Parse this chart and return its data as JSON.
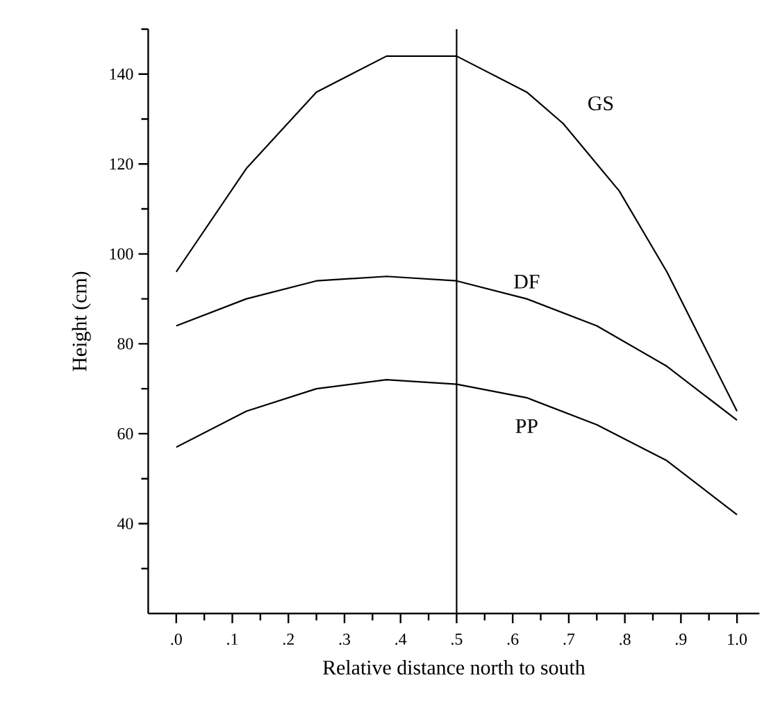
{
  "chart_data": {
    "type": "line",
    "xlabel": "Relative distance north to south",
    "ylabel": "Height (cm)",
    "series": [
      {
        "name": "GS",
        "color": "#000000",
        "x": [
          0,
          0.125,
          0.25,
          0.375,
          0.5,
          0.625,
          0.69,
          0.79,
          0.875,
          1
        ],
        "values": [
          96,
          119,
          136,
          144,
          144,
          136,
          129,
          114,
          96,
          65
        ]
      },
      {
        "name": "DF",
        "color": "#000000",
        "x": [
          0,
          0.125,
          0.25,
          0.375,
          0.5,
          0.625,
          0.75,
          0.875,
          1
        ],
        "values": [
          84,
          90,
          94,
          95,
          94,
          90,
          84,
          75,
          63
        ]
      },
      {
        "name": "PP",
        "color": "#000000",
        "x": [
          0,
          0.125,
          0.25,
          0.375,
          0.5,
          0.625,
          0.75,
          0.875,
          1
        ],
        "values": [
          57,
          65,
          70,
          72,
          71,
          68,
          62,
          54,
          42
        ]
      }
    ],
    "xlim": [
      -0.05,
      1.04
    ],
    "ylim": [
      20,
      150
    ],
    "xticks": [
      {
        "value": 0,
        "label": ".0"
      },
      {
        "value": 0.05,
        "label": null
      },
      {
        "value": 0.1,
        "label": ".1"
      },
      {
        "value": 0.15,
        "label": null
      },
      {
        "value": 0.2,
        "label": ".2"
      },
      {
        "value": 0.25,
        "label": null
      },
      {
        "value": 0.3,
        "label": ".3"
      },
      {
        "value": 0.35,
        "label": null
      },
      {
        "value": 0.4,
        "label": ".4"
      },
      {
        "value": 0.45,
        "label": null
      },
      {
        "value": 0.5,
        "label": ".5"
      },
      {
        "value": 0.55,
        "label": null
      },
      {
        "value": 0.6,
        "label": ".6"
      },
      {
        "value": 0.65,
        "label": null
      },
      {
        "value": 0.7,
        "label": ".7"
      },
      {
        "value": 0.75,
        "label": null
      },
      {
        "value": 0.8,
        "label": ".8"
      },
      {
        "value": 0.85,
        "label": null
      },
      {
        "value": 0.9,
        "label": ".9"
      },
      {
        "value": 0.95,
        "label": null
      },
      {
        "value": 1,
        "label": "1.0"
      }
    ],
    "yticks": [
      {
        "value": 30,
        "label": null
      },
      40,
      {
        "value": 50,
        "label": null
      },
      60,
      {
        "value": 70,
        "label": null
      },
      80,
      {
        "value": 90,
        "label": null
      },
      100,
      {
        "value": 110,
        "label": null
      },
      120,
      {
        "value": 130,
        "label": null
      },
      140,
      {
        "value": 150,
        "label": null
      }
    ],
    "ref_lines": [
      {
        "axis": "x",
        "value": 0.5,
        "color": "#000000"
      }
    ],
    "grid": false,
    "legend": false,
    "marker": "none",
    "line_style": "solid"
  }
}
